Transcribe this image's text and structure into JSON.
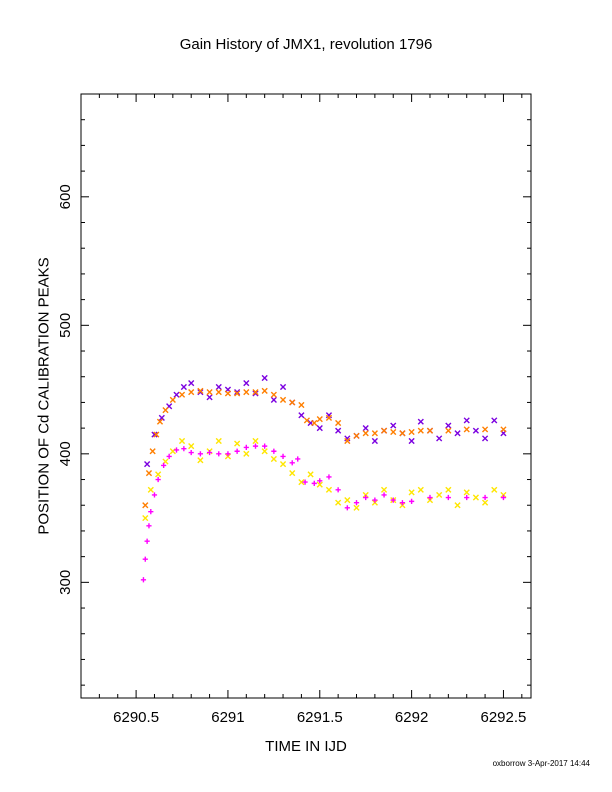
{
  "chart_data": {
    "type": "scatter",
    "title": "Gain History of JMX1, revolution 1796",
    "xlabel": "TIME IN IJD",
    "ylabel": "POSITION OF Cd CALIBRATION PEAKS",
    "xlim": [
      6290.2,
      6292.65
    ],
    "ylim": [
      210,
      680
    ],
    "x_ticks": [
      6290.5,
      6291,
      6291.5,
      6292,
      6292.5
    ],
    "x_tick_labels": [
      "6290.5",
      "6291",
      "6291.5",
      "6292",
      "6292.5"
    ],
    "y_ticks": [
      300,
      400,
      500,
      600
    ],
    "y_tick_labels": [
      "300",
      "400",
      "500",
      "600"
    ],
    "grid": false,
    "series": [
      {
        "color": "#7b00e0",
        "marker": "x",
        "x": [
          6290.56,
          6290.6,
          6290.64,
          6290.68,
          6290.72,
          6290.76,
          6290.8,
          6290.85,
          6290.9,
          6290.95,
          6291.0,
          6291.05,
          6291.1,
          6291.15,
          6291.2,
          6291.25,
          6291.3,
          6291.35,
          6291.4,
          6291.45,
          6291.5,
          6291.55,
          6291.6,
          6291.65,
          6291.7,
          6291.75,
          6291.8,
          6291.85,
          6291.9,
          6291.95,
          6292.0,
          6292.05,
          6292.1,
          6292.15,
          6292.2,
          6292.25,
          6292.3,
          6292.35,
          6292.4,
          6292.45,
          6292.5
        ],
        "y": [
          392,
          415,
          428,
          437,
          446,
          452,
          455,
          448,
          444,
          452,
          450,
          448,
          455,
          447,
          459,
          442,
          452,
          440,
          430,
          424,
          420,
          430,
          418,
          412,
          414,
          420,
          410,
          418,
          422,
          416,
          410,
          425,
          418,
          412,
          422,
          416,
          426,
          418,
          412,
          426,
          416
        ]
      },
      {
        "color": "#ffe600",
        "marker": "x",
        "x": [
          6290.55,
          6290.58,
          6290.62,
          6290.66,
          6290.7,
          6290.75,
          6290.8,
          6290.85,
          6290.9,
          6290.95,
          6291.0,
          6291.05,
          6291.1,
          6291.15,
          6291.2,
          6291.25,
          6291.3,
          6291.35,
          6291.4,
          6291.45,
          6291.5,
          6291.55,
          6291.6,
          6291.65,
          6291.7,
          6291.75,
          6291.8,
          6291.85,
          6291.9,
          6291.95,
          6292.0,
          6292.05,
          6292.1,
          6292.15,
          6292.2,
          6292.25,
          6292.3,
          6292.35,
          6292.4,
          6292.45,
          6292.5
        ],
        "y": [
          350,
          372,
          384,
          394,
          402,
          410,
          406,
          395,
          402,
          410,
          398,
          408,
          400,
          410,
          402,
          396,
          392,
          385,
          378,
          384,
          376,
          372,
          362,
          364,
          358,
          368,
          362,
          372,
          364,
          360,
          370,
          372,
          364,
          368,
          372,
          360,
          370,
          366,
          362,
          372,
          368
        ]
      },
      {
        "color": "#ff7f00",
        "marker": "x",
        "x": [
          6290.55,
          6290.57,
          6290.59,
          6290.61,
          6290.63,
          6290.66,
          6290.7,
          6290.75,
          6290.8,
          6290.85,
          6290.9,
          6290.95,
          6291.0,
          6291.05,
          6291.1,
          6291.15,
          6291.2,
          6291.25,
          6291.3,
          6291.35,
          6291.4,
          6291.43,
          6291.47,
          6291.5,
          6291.55,
          6291.6,
          6291.65,
          6291.7,
          6291.75,
          6291.8,
          6291.85,
          6291.9,
          6291.95,
          6292.0,
          6292.05,
          6292.1,
          6292.2,
          6292.3,
          6292.4,
          6292.5
        ],
        "y": [
          360,
          385,
          402,
          415,
          425,
          434,
          442,
          446,
          448,
          449,
          448,
          448,
          447,
          447,
          448,
          448,
          449,
          446,
          442,
          440,
          438,
          426,
          424,
          427,
          428,
          424,
          410,
          414,
          416,
          416,
          418,
          417,
          416,
          417,
          418,
          418,
          418,
          419,
          419,
          419
        ]
      },
      {
        "color": "#ff00ff",
        "marker": "+",
        "x": [
          6290.54,
          6290.55,
          6290.56,
          6290.57,
          6290.58,
          6290.6,
          6290.62,
          6290.65,
          6290.68,
          6290.72,
          6290.76,
          6290.8,
          6290.85,
          6290.9,
          6290.95,
          6291.0,
          6291.05,
          6291.1,
          6291.15,
          6291.2,
          6291.25,
          6291.3,
          6291.35,
          6291.38,
          6291.42,
          6291.47,
          6291.5,
          6291.55,
          6291.6,
          6291.65,
          6291.7,
          6291.75,
          6291.8,
          6291.85,
          6291.9,
          6291.95,
          6292.0,
          6292.1,
          6292.2,
          6292.3,
          6292.4,
          6292.5
        ],
        "y": [
          302,
          318,
          332,
          344,
          355,
          368,
          380,
          391,
          398,
          403,
          404,
          401,
          400,
          401,
          400,
          400,
          402,
          405,
          406,
          406,
          402,
          398,
          393,
          396,
          378,
          377,
          379,
          382,
          372,
          358,
          362,
          366,
          364,
          368,
          364,
          362,
          363,
          366,
          366,
          366,
          366,
          366
        ]
      }
    ]
  },
  "footer": "oxborrow 3-Apr-2017 14:44"
}
